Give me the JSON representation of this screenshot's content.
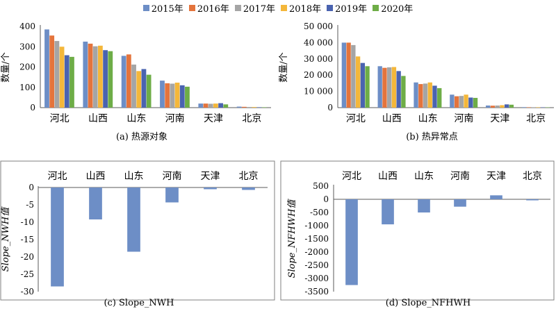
{
  "legend": {
    "items": [
      {
        "label": "2015年",
        "color": "#6D8EC6"
      },
      {
        "label": "2016年",
        "color": "#E4743C"
      },
      {
        "label": "2017年",
        "color": "#A5A5A5"
      },
      {
        "label": "2018年",
        "color": "#F4B73A"
      },
      {
        "label": "2019年",
        "color": "#4A63B0"
      },
      {
        "label": "2020年",
        "color": "#6EAD47"
      }
    ]
  },
  "chart_data": [
    {
      "id": "a",
      "type": "bar",
      "caption": "(a) 热源对象",
      "ylabel": "数量/个",
      "categories": [
        "河北",
        "山西",
        "山东",
        "河南",
        "天津",
        "北京"
      ],
      "yticks": [
        "0",
        "100",
        "200",
        "300",
        "400"
      ],
      "ylim": [
        0,
        400
      ],
      "series": [
        {
          "name": "2015年",
          "values": [
            385,
            325,
            255,
            133,
            20,
            5
          ]
        },
        {
          "name": "2016年",
          "values": [
            355,
            315,
            262,
            120,
            20,
            4
          ]
        },
        {
          "name": "2017年",
          "values": [
            328,
            302,
            212,
            118,
            19,
            3
          ]
        },
        {
          "name": "2018年",
          "values": [
            300,
            305,
            180,
            123,
            20,
            3
          ]
        },
        {
          "name": "2019年",
          "values": [
            258,
            283,
            190,
            110,
            22,
            2
          ]
        },
        {
          "name": "2020年",
          "values": [
            250,
            278,
            162,
            103,
            16,
            2
          ]
        }
      ]
    },
    {
      "id": "b",
      "type": "bar",
      "caption": "(b) 热异常点",
      "ylabel": "数量/个",
      "categories": [
        "河北",
        "山西",
        "山东",
        "河南",
        "天津",
        "北京"
      ],
      "yticks": [
        "0",
        "10 000",
        "20 000",
        "30 000",
        "40 000",
        "50 000"
      ],
      "ylim": [
        0,
        50000
      ],
      "series": [
        {
          "name": "2015年",
          "values": [
            40000,
            25500,
            15500,
            8000,
            1300,
            300
          ]
        },
        {
          "name": "2016年",
          "values": [
            40000,
            24500,
            14500,
            7000,
            1200,
            250
          ]
        },
        {
          "name": "2017年",
          "values": [
            38500,
            24800,
            14800,
            7200,
            1300,
            250
          ]
        },
        {
          "name": "2018年",
          "values": [
            31500,
            25000,
            15500,
            8000,
            1500,
            250
          ]
        },
        {
          "name": "2019年",
          "values": [
            27500,
            22500,
            13500,
            6200,
            2000,
            200
          ]
        },
        {
          "name": "2020年",
          "values": [
            25500,
            19500,
            12000,
            6000,
            1800,
            200
          ]
        }
      ]
    },
    {
      "id": "c",
      "type": "bar",
      "caption": "(c) Slope_NWH",
      "ylabel": "Slope_NWH值",
      "categories": [
        "河北",
        "山西",
        "山东",
        "河南",
        "天津",
        "北京"
      ],
      "yticks": [
        "0",
        "-5",
        "-10",
        "-15",
        "-20",
        "-25",
        "-30"
      ],
      "ylim": [
        -30,
        0
      ],
      "color": "#6D8EC6",
      "values": [
        -28.5,
        -9.2,
        -18.5,
        -4.3,
        -0.5,
        -0.7
      ]
    },
    {
      "id": "d",
      "type": "bar",
      "caption": "(d) Slope_NFHWH",
      "ylabel": "Slope_NFHWH值",
      "categories": [
        "河北",
        "山西",
        "山东",
        "河南",
        "天津",
        "北京"
      ],
      "yticks": [
        "500",
        "0",
        "-500",
        "-1000",
        "-1500",
        "-2000",
        "-2500",
        "-3000",
        "-3500"
      ],
      "ylim": [
        -3500,
        500
      ],
      "color": "#6D8EC6",
      "values": [
        -3250,
        -950,
        -500,
        -280,
        150,
        -40
      ]
    }
  ]
}
